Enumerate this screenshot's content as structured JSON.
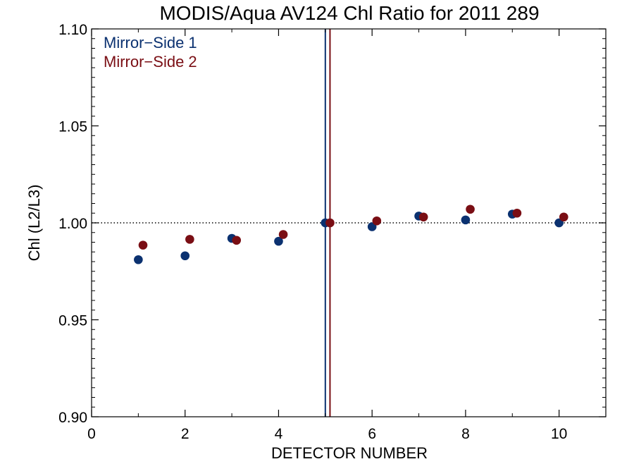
{
  "chart_data": {
    "type": "scatter",
    "title": "MODIS/Aqua AV124 Chl Ratio for 2011 289",
    "xlabel": "DETECTOR NUMBER",
    "ylabel": "Chl (L2/L3)",
    "xlim": [
      0,
      11
    ],
    "ylim": [
      0.9,
      1.1
    ],
    "x_ticks": [
      0,
      2,
      4,
      6,
      8,
      10
    ],
    "y_ticks": [
      0.9,
      0.95,
      1.0,
      1.05,
      1.1
    ],
    "x_tick_labels": [
      "0",
      "2",
      "4",
      "6",
      "8",
      "10"
    ],
    "y_tick_labels": [
      "0.90",
      "0.95",
      "1.00",
      "1.05",
      "1.10"
    ],
    "reference_line_y": 1.0,
    "legend_position": "top-left",
    "series": [
      {
        "name": "Mirror−Side 1",
        "color": "#0b3170",
        "x": [
          1,
          2,
          3,
          4,
          5,
          6,
          7,
          8,
          9,
          10
        ],
        "y": [
          0.981,
          0.983,
          0.992,
          0.9905,
          1.0,
          0.998,
          1.0035,
          1.0015,
          1.0045,
          1.0
        ],
        "vline_x": 5.0
      },
      {
        "name": "Mirror−Side 2",
        "color": "#7a0e14",
        "x": [
          1.1,
          2.1,
          3.1,
          4.1,
          5.1,
          6.1,
          7.1,
          8.1,
          9.1,
          10.1
        ],
        "y": [
          0.9885,
          0.9915,
          0.991,
          0.994,
          1.0,
          1.001,
          1.003,
          1.007,
          1.005,
          1.003
        ],
        "vline_x": 5.1
      }
    ]
  }
}
